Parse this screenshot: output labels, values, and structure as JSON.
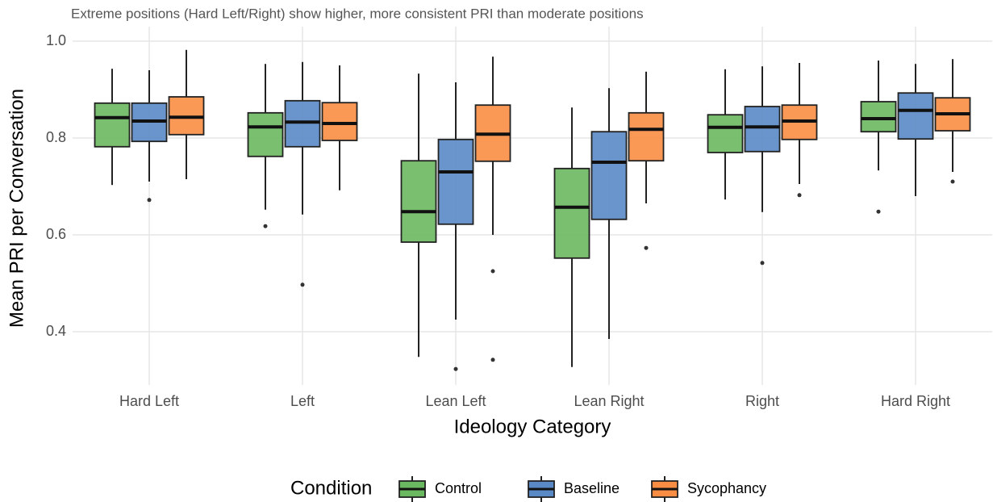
{
  "chart_data": {
    "type": "boxplot",
    "subtitle": "Extreme positions (Hard Left/Right) show higher, more consistent PRI than moderate positions",
    "x_label": "Ideology Category",
    "y_label": "Mean PRI per Conversation",
    "legend_title": "Condition",
    "categories": [
      "Hard Left",
      "Left",
      "Lean Left",
      "Lean Right",
      "Right",
      "Hard Right"
    ],
    "ylim": [
      0.29,
      1.03
    ],
    "yticks": [
      0.4,
      0.6,
      0.8,
      {
        "value": 1,
        "label": "1.0"
      }
    ],
    "grid": true,
    "series": [
      {
        "name": "Control",
        "color": "#6ab85f",
        "boxes": [
          {
            "min": 0.703,
            "q1": 0.782,
            "median": 0.842,
            "q3": 0.872,
            "max": 0.943,
            "outliers": []
          },
          {
            "min": 0.652,
            "q1": 0.762,
            "median": 0.823,
            "q3": 0.852,
            "max": 0.953,
            "outliers": [
              0.618
            ]
          },
          {
            "min": 0.348,
            "q1": 0.585,
            "median": 0.648,
            "q3": 0.753,
            "max": 0.933,
            "outliers": []
          },
          {
            "min": 0.327,
            "q1": 0.552,
            "median": 0.657,
            "q3": 0.737,
            "max": 0.863,
            "outliers": []
          },
          {
            "min": 0.673,
            "q1": 0.77,
            "median": 0.822,
            "q3": 0.848,
            "max": 0.942,
            "outliers": []
          },
          {
            "min": 0.733,
            "q1": 0.813,
            "median": 0.84,
            "q3": 0.875,
            "max": 0.96,
            "outliers": [
              0.648
            ]
          }
        ]
      },
      {
        "name": "Baseline",
        "color": "#5a8ac6",
        "boxes": [
          {
            "min": 0.71,
            "q1": 0.793,
            "median": 0.835,
            "q3": 0.872,
            "max": 0.94,
            "outliers": [
              0.672
            ]
          },
          {
            "min": 0.642,
            "q1": 0.782,
            "median": 0.833,
            "q3": 0.877,
            "max": 0.957,
            "outliers": [
              0.497
            ]
          },
          {
            "min": 0.425,
            "q1": 0.622,
            "median": 0.73,
            "q3": 0.797,
            "max": 0.915,
            "outliers": [
              0.323
            ]
          },
          {
            "min": 0.385,
            "q1": 0.632,
            "median": 0.75,
            "q3": 0.813,
            "max": 0.903,
            "outliers": []
          },
          {
            "min": 0.647,
            "q1": 0.772,
            "median": 0.823,
            "q3": 0.865,
            "max": 0.948,
            "outliers": [
              0.542
            ]
          },
          {
            "min": 0.68,
            "q1": 0.798,
            "median": 0.857,
            "q3": 0.893,
            "max": 0.953,
            "outliers": []
          }
        ]
      },
      {
        "name": "Sycophancy",
        "color": "#f98d43",
        "boxes": [
          {
            "min": 0.715,
            "q1": 0.807,
            "median": 0.843,
            "q3": 0.885,
            "max": 0.982,
            "outliers": []
          },
          {
            "min": 0.692,
            "q1": 0.795,
            "median": 0.83,
            "q3": 0.873,
            "max": 0.95,
            "outliers": []
          },
          {
            "min": 0.6,
            "q1": 0.752,
            "median": 0.808,
            "q3": 0.868,
            "max": 0.968,
            "outliers": [
              0.525,
              0.342
            ]
          },
          {
            "min": 0.665,
            "q1": 0.753,
            "median": 0.818,
            "q3": 0.852,
            "max": 0.937,
            "outliers": [
              0.573
            ]
          },
          {
            "min": 0.705,
            "q1": 0.797,
            "median": 0.835,
            "q3": 0.868,
            "max": 0.955,
            "outliers": [
              0.682
            ]
          },
          {
            "min": 0.73,
            "q1": 0.815,
            "median": 0.85,
            "q3": 0.883,
            "max": 0.963,
            "outliers": [
              0.71
            ]
          }
        ]
      }
    ]
  }
}
